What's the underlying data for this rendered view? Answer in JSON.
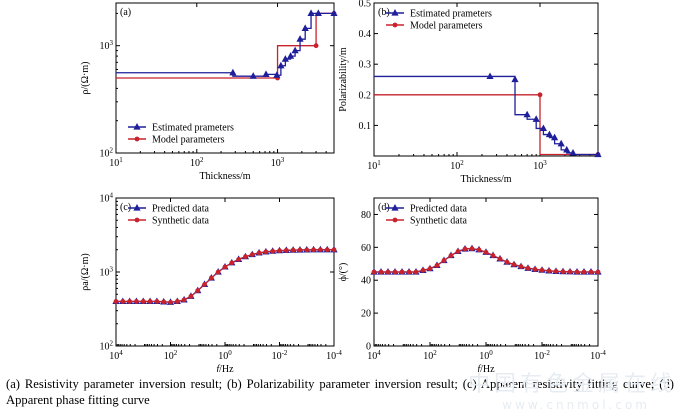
{
  "caption": "(a) Resistivity parameter inversion result; (b) Polarizability parameter inversion result; (c) Apparent resistivity fitting curve; (d) Apparent phase fitting curve",
  "watermark": "中国有色金属在线",
  "watermark_url": "www.cnnmol.com",
  "colors": {
    "estimated": "#1f1f9c",
    "model": "#c8232c"
  },
  "chart_data": [
    {
      "id": "a",
      "type": "line",
      "panel_label": "(a)",
      "xlabel": "Thickness/m",
      "ylabel": "ρ/(Ω·m)",
      "xscale": "log",
      "yscale": "log",
      "xlim": [
        10,
        5000
      ],
      "ylim": [
        100,
        2500
      ],
      "xticks": [
        10,
        100,
        1000
      ],
      "xtick_labels": [
        "10^1",
        "10^2",
        "10^3"
      ],
      "yticks": [
        100,
        1000
      ],
      "ytick_labels": [
        "10^2",
        "10^3"
      ],
      "legend": "bottom-left",
      "series": [
        {
          "name": "Estimated prameters",
          "color": "#1f1f9c",
          "marker": "triangle",
          "step": true,
          "x": [
            10,
            280,
            280,
            720,
            720,
            980,
            980,
            1100,
            1100,
            1250,
            1250,
            1450,
            1450,
            1650,
            1650,
            1900,
            1900,
            2200,
            2200,
            2600,
            2600,
            5000
          ],
          "y": [
            560,
            560,
            520,
            520,
            540,
            540,
            530,
            530,
            650,
            650,
            750,
            750,
            800,
            800,
            900,
            900,
            1150,
            1150,
            1450,
            1450,
            2000,
            2000
          ],
          "markers_x": [
            280,
            500,
            720,
            980,
            1100,
            1250,
            1450,
            1650,
            1900,
            2200,
            2600,
            3200,
            5000
          ],
          "markers_y": [
            560,
            520,
            540,
            530,
            650,
            750,
            800,
            900,
            1150,
            1450,
            2000,
            2000,
            2000
          ]
        },
        {
          "name": "Model parameters",
          "color": "#c8232c",
          "marker": "circle",
          "step": true,
          "x": [
            10,
            1000,
            1000,
            3000,
            3000,
            5000
          ],
          "y": [
            500,
            500,
            1000,
            1000,
            2000,
            2000
          ],
          "markers_x": [
            1000,
            3000,
            5000
          ],
          "markers_y": [
            500,
            1000,
            2000
          ]
        }
      ]
    },
    {
      "id": "b",
      "type": "line",
      "panel_label": "(b)",
      "xlabel": "Thickness/m",
      "ylabel": "Polarizability/m",
      "xscale": "log",
      "yscale": "linear",
      "xlim": [
        10,
        5000
      ],
      "ylim": [
        0,
        0.5
      ],
      "xticks": [
        10,
        100,
        1000
      ],
      "xtick_labels": [
        "10^1",
        "10^2",
        "10^3"
      ],
      "yticks": [
        0.1,
        0.2,
        0.3,
        0.4,
        0.5
      ],
      "ytick_labels": [
        "0.1",
        "0.2",
        "0.3",
        "0.4",
        "0.5"
      ],
      "legend": "top-left",
      "series": [
        {
          "name": "Estimated prameters",
          "color": "#1f1f9c",
          "marker": "triangle",
          "step": true,
          "x": [
            10,
            500,
            500,
            700,
            700,
            900,
            900,
            1100,
            1100,
            1300,
            1300,
            1500,
            1500,
            1800,
            1800,
            2100,
            2100,
            2500,
            2500,
            5000
          ],
          "y": [
            0.26,
            0.26,
            0.135,
            0.135,
            0.12,
            0.12,
            0.09,
            0.09,
            0.07,
            0.07,
            0.06,
            0.06,
            0.04,
            0.04,
            0.02,
            0.02,
            0.01,
            0.01,
            0.005,
            0.005
          ],
          "markers_x": [
            250,
            500,
            700,
            900,
            1100,
            1300,
            1500,
            1800,
            2100,
            2500,
            5000
          ],
          "markers_y": [
            0.26,
            0.25,
            0.135,
            0.12,
            0.09,
            0.07,
            0.06,
            0.04,
            0.02,
            0.01,
            0.005
          ]
        },
        {
          "name": "Model parameters",
          "color": "#c8232c",
          "marker": "circle",
          "step": true,
          "x": [
            10,
            1000,
            1000,
            5000
          ],
          "y": [
            0.2,
            0.2,
            0.005,
            0.005
          ],
          "markers_x": [
            1000,
            5000
          ],
          "markers_y": [
            0.2,
            0.005
          ]
        }
      ]
    },
    {
      "id": "c",
      "type": "line",
      "panel_label": "(c)",
      "xlabel": "f/Hz",
      "ylabel": "ρa/(Ω·m)",
      "xscale": "log",
      "xreversed": true,
      "yscale": "log",
      "xlim": [
        10000,
        0.0001
      ],
      "ylim": [
        100,
        10000
      ],
      "xticks": [
        10000,
        100,
        1,
        0.01,
        0.0001
      ],
      "xtick_labels": [
        "10^4",
        "10^2",
        "10^0",
        "10^-2",
        "10^-4"
      ],
      "yticks": [
        100,
        1000,
        10000
      ],
      "ytick_labels": [
        "10^2",
        "10^3",
        "10^4"
      ],
      "legend": "top-left",
      "series_names": [
        "Predicted data",
        "Synthetic data"
      ],
      "x_log10": [
        4.0,
        3.75,
        3.5,
        3.25,
        3.0,
        2.75,
        2.5,
        2.25,
        2.0,
        1.75,
        1.5,
        1.25,
        1.0,
        0.75,
        0.5,
        0.25,
        0.0,
        -0.25,
        -0.5,
        -0.75,
        -1.0,
        -1.25,
        -1.5,
        -1.75,
        -2.0,
        -2.25,
        -2.5,
        -2.75,
        -3.0,
        -3.25,
        -3.5,
        -3.75,
        -4.0
      ],
      "y": [
        400,
        400,
        400,
        400,
        400,
        400,
        400,
        395,
        390,
        400,
        420,
        470,
        560,
        680,
        830,
        1000,
        1170,
        1330,
        1480,
        1610,
        1720,
        1810,
        1870,
        1910,
        1940,
        1960,
        1975,
        1985,
        1990,
        1995,
        2000,
        2000,
        2000
      ]
    },
    {
      "id": "d",
      "type": "line",
      "panel_label": "(d)",
      "xlabel": "f/Hz",
      "ylabel": "ϕ/(°)",
      "xscale": "log",
      "xreversed": true,
      "yscale": "linear",
      "xlim": [
        10000,
        0.0001
      ],
      "ylim": [
        0,
        90
      ],
      "xticks": [
        10000,
        100,
        1,
        0.01,
        0.0001
      ],
      "xtick_labels": [
        "10^4",
        "10^2",
        "10^0",
        "10^-2",
        "10^-4"
      ],
      "yticks": [
        0,
        20,
        40,
        60,
        80
      ],
      "ytick_labels": [
        "0",
        "20",
        "40",
        "60",
        "80"
      ],
      "legend": "top-left",
      "series_names": [
        "Predicted data",
        "Synthetic data"
      ],
      "x_log10": [
        4.0,
        3.75,
        3.5,
        3.25,
        3.0,
        2.75,
        2.5,
        2.25,
        2.0,
        1.75,
        1.5,
        1.25,
        1.0,
        0.75,
        0.5,
        0.25,
        0.0,
        -0.25,
        -0.5,
        -0.75,
        -1.0,
        -1.25,
        -1.5,
        -1.75,
        -2.0,
        -2.25,
        -2.5,
        -2.75,
        -3.0,
        -3.25,
        -3.5,
        -3.75,
        -4.0
      ],
      "y": [
        45,
        45,
        45,
        45,
        45,
        45,
        45,
        46,
        47,
        49,
        52,
        55,
        57.5,
        59,
        59.2,
        58.5,
        57,
        55,
        53,
        51,
        49.5,
        48.3,
        47.3,
        46.6,
        46.1,
        45.7,
        45.4,
        45.2,
        45.1,
        45,
        45,
        45,
        45
      ]
    }
  ]
}
